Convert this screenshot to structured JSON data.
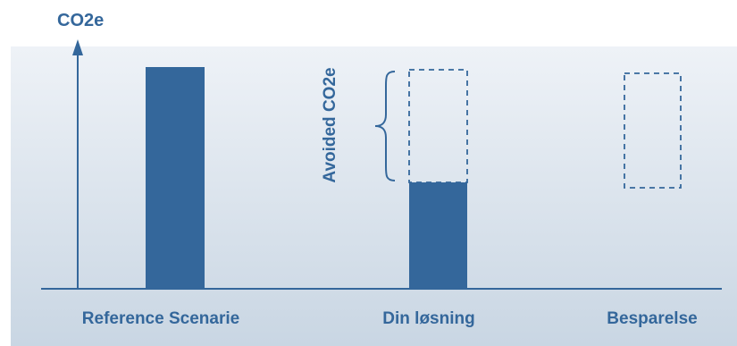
{
  "axis": {
    "y_label": "CO2e"
  },
  "categories": [
    {
      "label": "Reference Scenarie",
      "value_level": 1.0,
      "kind": "solid"
    },
    {
      "label": "Din løsning",
      "value_level": 0.48,
      "kind": "solid_with_dashed_outline"
    },
    {
      "label": "Besparelse",
      "value_level": 0.52,
      "kind": "dashed_only"
    }
  ],
  "annotation": {
    "text": "Avoided CO2e"
  },
  "colors": {
    "primary": "#34679b",
    "panel_top": "#eef2f7",
    "panel_bottom": "#c9d6e3",
    "axis": "#34679b",
    "dashed": "#34679b"
  }
}
